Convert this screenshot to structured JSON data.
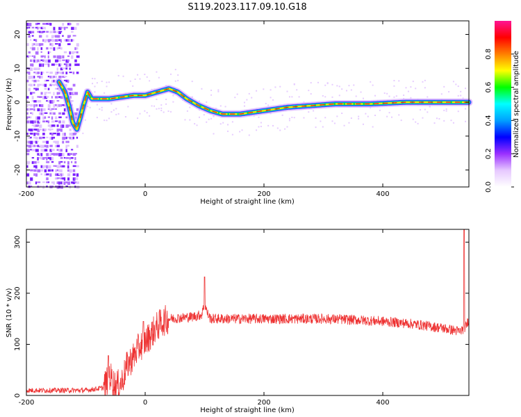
{
  "title": "S119.2023.117.09.10.G18",
  "colors": {
    "snr_line": "#ee3333",
    "colormap": [
      "#ffffff",
      "#e6c8ff",
      "#9b30ff",
      "#0000ff",
      "#00a0ff",
      "#00ffff",
      "#00ff00",
      "#ffff00",
      "#ff8000",
      "#ff0000",
      "#ff1493"
    ]
  },
  "chart_data": [
    {
      "type": "heatmap",
      "title": "S119.2023.117.09.10.G18",
      "xlabel": "Height of straight line (km)",
      "ylabel": "Frequency (Hz)",
      "xlim": [
        -200,
        545
      ],
      "ylim": [
        -25,
        24
      ],
      "x_ticks": [
        -200,
        0,
        200,
        400
      ],
      "y_ticks": [
        -20,
        -10,
        0,
        10,
        20
      ],
      "colorbar": {
        "label": "Normalized spectral amplitude",
        "range": [
          0.0,
          1.0
        ],
        "ticks": [
          "0.0",
          "0.2",
          "0.4",
          "0.6",
          "0.8"
        ]
      },
      "ridge": {
        "x": [
          -145,
          -135,
          -127,
          -122,
          -115,
          -110,
          -104,
          -97,
          -90,
          -80,
          -60,
          -40,
          -20,
          0,
          20,
          40,
          55,
          70,
          90,
          110,
          130,
          160,
          200,
          240,
          280,
          320,
          380,
          440,
          500,
          545
        ],
        "y": [
          6,
          3,
          -2,
          -6,
          -8,
          -5,
          -1,
          3,
          1,
          1,
          1,
          1.5,
          2,
          2,
          3,
          4,
          3,
          1,
          -1,
          -2.5,
          -3.5,
          -3.5,
          -2.5,
          -1.5,
          -1,
          -0.5,
          -0.5,
          0,
          0,
          0
        ]
      },
      "noise_region": {
        "x_range": [
          -200,
          -115
        ],
        "description_value": "broadband low-amplitude"
      }
    },
    {
      "type": "line",
      "xlabel": "Height of straight line (km)",
      "ylabel": "SNR (10 * v/v)",
      "xlim": [
        -200,
        545
      ],
      "ylim": [
        0,
        325
      ],
      "x_ticks": [
        -200,
        0,
        200,
        400
      ],
      "y_ticks": [
        0,
        100,
        200,
        300
      ],
      "envelope": {
        "x": [
          -200,
          -150,
          -100,
          -70,
          -60,
          -50,
          -40,
          -30,
          -20,
          -10,
          0,
          10,
          20,
          30,
          40,
          60,
          80,
          95,
          100,
          105,
          110,
          130,
          200,
          300,
          350,
          400,
          450,
          500,
          530,
          540,
          545
        ],
        "y": [
          10,
          10,
          10,
          15,
          40,
          18,
          25,
          60,
          75,
          95,
          105,
          120,
          135,
          145,
          150,
          152,
          154,
          158,
          180,
          160,
          150,
          150,
          150,
          150,
          148,
          145,
          140,
          132,
          125,
          135,
          150
        ]
      },
      "spikes": [
        {
          "x": -62,
          "y": 78
        },
        {
          "x": -3,
          "y": 145
        },
        {
          "x": 100,
          "y": 232
        },
        {
          "x": 537,
          "y": 325
        }
      ]
    }
  ]
}
